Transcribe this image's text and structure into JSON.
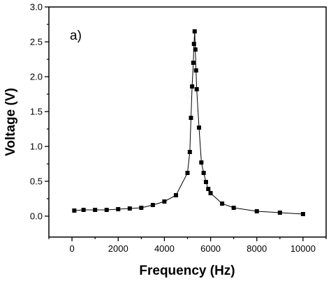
{
  "chart_data": {
    "type": "line",
    "series": [
      {
        "marker": "square",
        "color": "#000000",
        "points": [
          [
            100,
            0.08
          ],
          [
            500,
            0.09
          ],
          [
            1000,
            0.09
          ],
          [
            1500,
            0.09
          ],
          [
            2000,
            0.1
          ],
          [
            2500,
            0.11
          ],
          [
            3000,
            0.12
          ],
          [
            3500,
            0.16
          ],
          [
            4000,
            0.21
          ],
          [
            4500,
            0.3
          ],
          [
            5000,
            0.62
          ],
          [
            5100,
            0.92
          ],
          [
            5150,
            1.41
          ],
          [
            5200,
            1.86
          ],
          [
            5250,
            2.2
          ],
          [
            5280,
            2.47
          ],
          [
            5310,
            2.65
          ],
          [
            5340,
            2.39
          ],
          [
            5370,
            2.09
          ],
          [
            5400,
            1.82
          ],
          [
            5500,
            1.27
          ],
          [
            5600,
            0.77
          ],
          [
            5700,
            0.62
          ],
          [
            5800,
            0.49
          ],
          [
            5900,
            0.39
          ],
          [
            6000,
            0.33
          ],
          [
            6500,
            0.18
          ],
          [
            7000,
            0.12
          ],
          [
            8000,
            0.07
          ],
          [
            9000,
            0.05
          ],
          [
            10000,
            0.03
          ]
        ]
      }
    ],
    "xlabel": "Frequency (Hz)",
    "ylabel": "Voltage (V)",
    "xlim": [
      -1000,
      11000
    ],
    "ylim": [
      -0.3,
      3.0
    ],
    "xticks": [
      0,
      2000,
      4000,
      6000,
      8000,
      10000
    ],
    "xticks_minor": [
      -1000,
      1000,
      3000,
      5000,
      7000,
      9000,
      11000
    ],
    "yticks": [
      0.0,
      0.5,
      1.0,
      1.5,
      2.0,
      2.5,
      3.0
    ],
    "xtick_labels": [
      "0",
      "2000",
      "4000",
      "6000",
      "8000",
      "10000"
    ],
    "ytick_labels": [
      "0.0",
      "0.5",
      "1.0",
      "1.5",
      "2.0",
      "2.5",
      "3.0"
    ],
    "annotation": "a)",
    "grid": false,
    "legend": "none"
  }
}
